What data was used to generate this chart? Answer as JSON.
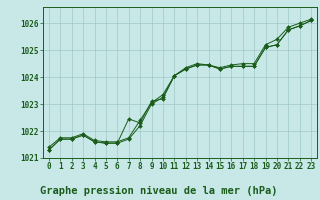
{
  "title": "Graphe pression niveau de la mer (hPa)",
  "xlim": [
    -0.5,
    23.5
  ],
  "ylim": [
    1021.0,
    1026.6
  ],
  "yticks": [
    1021,
    1022,
    1023,
    1024,
    1025,
    1026
  ],
  "xticks": [
    0,
    1,
    2,
    3,
    4,
    5,
    6,
    7,
    8,
    9,
    10,
    11,
    12,
    13,
    14,
    15,
    16,
    17,
    18,
    19,
    20,
    21,
    22,
    23
  ],
  "bg_color": "#c8e8e8",
  "grid_color": "#a0c8c8",
  "line_color": "#1a5c1a",
  "series1": [
    1021.4,
    1021.75,
    1021.75,
    1021.9,
    1021.65,
    1021.6,
    1021.6,
    1021.75,
    1022.4,
    1023.05,
    1023.35,
    1024.05,
    1024.35,
    1024.5,
    1024.45,
    1024.35,
    1024.45,
    1024.5,
    1024.5,
    1025.2,
    1025.4,
    1025.85,
    1026.0,
    1026.15
  ],
  "series2": [
    1021.3,
    1021.7,
    1021.7,
    1021.85,
    1021.6,
    1021.55,
    1021.55,
    1021.7,
    1022.2,
    1023.0,
    1023.25,
    1024.05,
    1024.3,
    1024.45,
    1024.45,
    1024.3,
    1024.4,
    1024.4,
    1024.4,
    1025.1,
    1025.2,
    1025.75,
    1025.9,
    1026.1
  ],
  "series3": [
    1021.3,
    1021.7,
    1021.7,
    1021.85,
    1021.6,
    1021.55,
    1021.55,
    1022.45,
    1022.3,
    1023.1,
    1023.2,
    1024.05,
    1024.3,
    1024.45,
    1024.45,
    1024.3,
    1024.4,
    1024.4,
    1024.4,
    1025.1,
    1025.2,
    1025.75,
    1025.9,
    1026.1
  ],
  "tick_fontsize": 5.5,
  "title_fontsize": 7.5
}
